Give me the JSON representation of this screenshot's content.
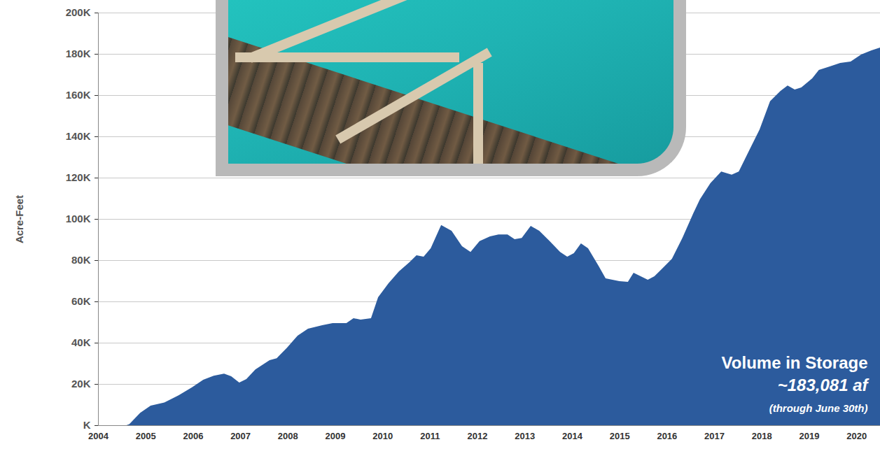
{
  "chart_data": {
    "type": "area",
    "y_label": "Acre-Feet",
    "annotations": [
      "Volume in Storage",
      "~183,081 af",
      "(through June 30th)"
    ],
    "color": "#2c5b9d",
    "grid": true,
    "x": [
      2004.0,
      2004.6,
      2004.66,
      2004.89,
      2005.11,
      2005.4,
      2005.7,
      2005.99,
      2006.22,
      2006.44,
      2006.66,
      2006.81,
      2006.98,
      2007.13,
      2007.32,
      2007.62,
      2007.77,
      2007.99,
      2008.21,
      2008.43,
      2008.73,
      2008.95,
      2009.24,
      2009.39,
      2009.54,
      2009.76,
      2009.91,
      2010.13,
      2010.35,
      2010.57,
      2010.72,
      2010.87,
      2011.02,
      2011.24,
      2011.46,
      2011.68,
      2011.86,
      2012.05,
      2012.27,
      2012.45,
      2012.64,
      2012.79,
      2012.94,
      2013.13,
      2013.31,
      2013.53,
      2013.75,
      2013.9,
      2014.04,
      2014.19,
      2014.34,
      2014.56,
      2014.71,
      2015.0,
      2015.18,
      2015.3,
      2015.45,
      2015.6,
      2015.74,
      2015.89,
      2016.11,
      2016.33,
      2016.56,
      2016.7,
      2016.92,
      2017.15,
      2017.37,
      2017.52,
      2017.74,
      2017.96,
      2018.18,
      2018.4,
      2018.55,
      2018.7,
      2018.84,
      2019.07,
      2019.21,
      2019.44,
      2019.66,
      2019.88,
      2020.1,
      2020.32,
      2020.5
    ],
    "values": [
      0,
      0,
      500,
      6000,
      9500,
      11000,
      14500,
      18500,
      22000,
      24000,
      25000,
      23700,
      20700,
      22400,
      27000,
      31500,
      32500,
      37600,
      43400,
      46800,
      48500,
      49500,
      49500,
      51900,
      51200,
      51900,
      62000,
      68800,
      74600,
      79000,
      82400,
      81700,
      85800,
      97000,
      94200,
      86800,
      84000,
      89200,
      91500,
      92500,
      92500,
      90200,
      90800,
      96600,
      94200,
      89200,
      84000,
      81700,
      83400,
      88100,
      85800,
      77300,
      71200,
      69800,
      69500,
      73900,
      72200,
      70500,
      72200,
      75600,
      80700,
      90800,
      102700,
      109500,
      117300,
      123000,
      121400,
      123000,
      133200,
      143400,
      157000,
      162000,
      164700,
      162700,
      163700,
      168100,
      172200,
      173900,
      175600,
      176300,
      179700,
      181700,
      183081
    ],
    "xlim": [
      2004,
      2020.5
    ],
    "xticks": [
      2004,
      2005,
      2006,
      2007,
      2008,
      2009,
      2010,
      2011,
      2012,
      2013,
      2014,
      2015,
      2016,
      2017,
      2018,
      2019,
      2020
    ],
    "ylim": [
      0,
      200000
    ],
    "yticks": [
      {
        "value": 0,
        "label": "K"
      },
      {
        "value": 20000,
        "label": "20K"
      },
      {
        "value": 40000,
        "label": "40K"
      },
      {
        "value": 60000,
        "label": "60K"
      },
      {
        "value": 80000,
        "label": "80K"
      },
      {
        "value": 100000,
        "label": "100K"
      },
      {
        "value": 120000,
        "label": "120K"
      },
      {
        "value": 140000,
        "label": "140K"
      },
      {
        "value": 160000,
        "label": "160K"
      },
      {
        "value": 180000,
        "label": "180K"
      },
      {
        "value": 200000,
        "label": "200K"
      }
    ]
  }
}
